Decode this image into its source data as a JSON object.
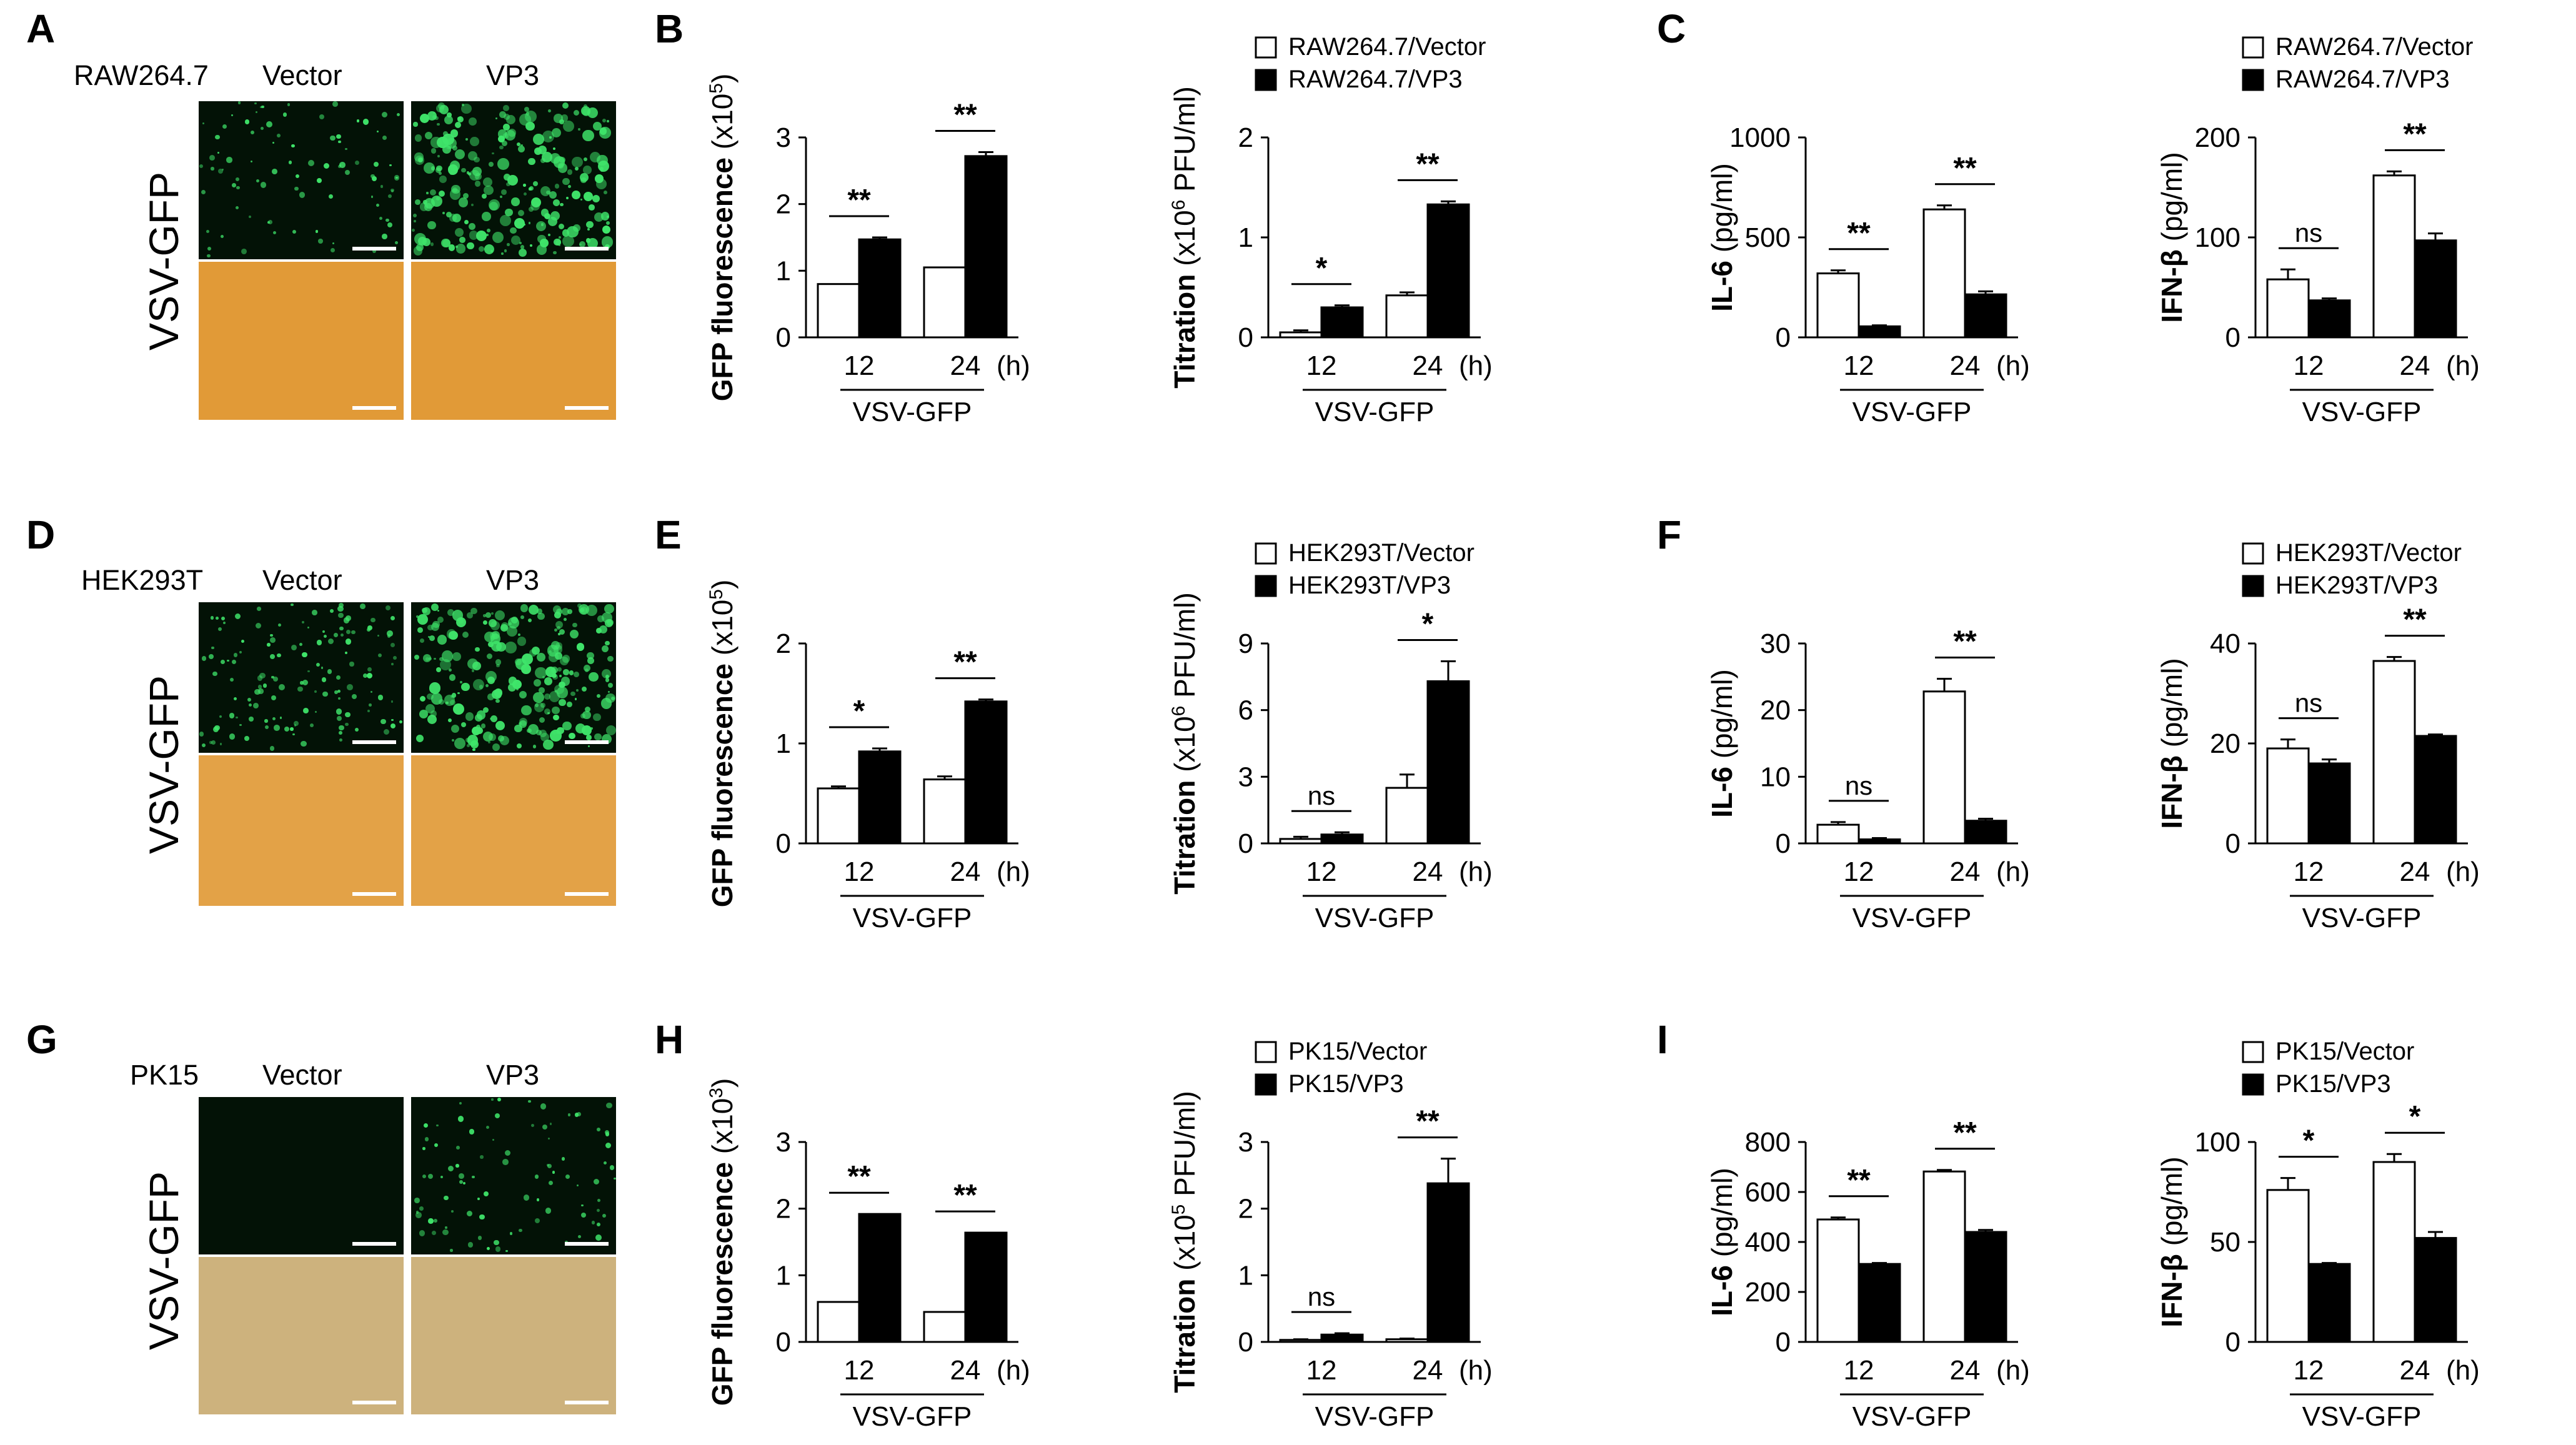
{
  "panel_letters": [
    "A",
    "B",
    "C",
    "D",
    "E",
    "F",
    "G",
    "H",
    "I"
  ],
  "micrographs": [
    {
      "cell_line": "RAW264.7",
      "col_left": "Vector",
      "col_right": "VP3",
      "virus_label": "VSV-GFP",
      "brightfield_color": "#e19a37",
      "fluor_density_left": 0.35,
      "fluor_density_right": 1.0
    },
    {
      "cell_line": "HEK293T",
      "col_left": "Vector",
      "col_right": "VP3",
      "virus_label": "VSV-GFP",
      "brightfield_color": "#e3a247",
      "fluor_density_left": 0.55,
      "fluor_density_right": 1.0
    },
    {
      "cell_line": "PK15",
      "col_left": "Vector",
      "col_right": "VP3",
      "virus_label": "VSV-GFP",
      "brightfield_color": "#cdb27d",
      "fluor_density_left": 0.0,
      "fluor_density_right": 0.35
    }
  ],
  "chart_data": [
    {
      "id": "B1",
      "type": "bar",
      "ylabel_main": "GFP fluorescence",
      "ylabel_unit_pre": " (x10",
      "ylabel_sup": "5",
      "ylabel_unit_post": ")",
      "ylabel_bold": true,
      "ylim": [
        0,
        3
      ],
      "yticks": [
        "0",
        "1",
        "2",
        "3"
      ],
      "categories": [
        "12",
        "24"
      ],
      "x_unit": "(h)",
      "xlabel": "VSV-GFP",
      "series": [
        {
          "name": "RAW264.7/Vector",
          "values": [
            0.8,
            1.05
          ],
          "err": [
            0,
            0
          ]
        },
        {
          "name": "RAW264.7/VP3",
          "values": [
            1.47,
            2.72
          ],
          "err": [
            0.03,
            0.06
          ]
        }
      ],
      "sig": [
        "**",
        "**"
      ],
      "legend": []
    },
    {
      "id": "B2",
      "type": "bar",
      "ylabel_main": "Titration",
      "ylabel_unit_pre": " (x10",
      "ylabel_sup": "6",
      "ylabel_unit_post": " PFU/ml)",
      "ylabel_bold": false,
      "ylim": [
        0,
        2
      ],
      "yticks": [
        "0",
        "1",
        "2"
      ],
      "categories": [
        "12",
        "24"
      ],
      "x_unit": "(h)",
      "xlabel": "VSV-GFP",
      "series": [
        {
          "name": "RAW264.7/Vector",
          "values": [
            0.05,
            0.42
          ],
          "err": [
            0.02,
            0.03
          ]
        },
        {
          "name": "RAW264.7/VP3",
          "values": [
            0.3,
            1.33
          ],
          "err": [
            0.02,
            0.03
          ]
        }
      ],
      "sig": [
        "*",
        "**"
      ],
      "legend": [
        "RAW264.7/Vector",
        "RAW264.7/VP3"
      ]
    },
    {
      "id": "C1",
      "type": "bar",
      "ylabel_main": "IL-6",
      "ylabel_unit_pre": " (pg/ml)",
      "ylabel_sup": "",
      "ylabel_unit_post": "",
      "ylabel_bold": false,
      "ylim": [
        0,
        1000
      ],
      "yticks": [
        "0",
        "500",
        "1000"
      ],
      "categories": [
        "12",
        "24"
      ],
      "x_unit": "(h)",
      "xlabel": "VSV-GFP",
      "series": [
        {
          "name": "RAW264.7/Vector",
          "values": [
            320,
            640
          ],
          "err": [
            15,
            20
          ]
        },
        {
          "name": "RAW264.7/VP3",
          "values": [
            55,
            215
          ],
          "err": [
            5,
            15
          ]
        }
      ],
      "sig": [
        "**",
        "**"
      ],
      "legend": []
    },
    {
      "id": "C2",
      "type": "bar",
      "ylabel_main": "IFN-β",
      "ylabel_unit_pre": " (pg/ml)",
      "ylabel_sup": "",
      "ylabel_unit_post": "",
      "ylabel_bold": false,
      "ylim": [
        0,
        200
      ],
      "yticks": [
        "0",
        "100",
        "200"
      ],
      "categories": [
        "12",
        "24"
      ],
      "x_unit": "(h)",
      "xlabel": "VSV-GFP",
      "series": [
        {
          "name": "RAW264.7/Vector",
          "values": [
            58,
            162
          ],
          "err": [
            10,
            4
          ]
        },
        {
          "name": "RAW264.7/VP3",
          "values": [
            37,
            97
          ],
          "err": [
            2,
            7
          ]
        }
      ],
      "sig": [
        "ns",
        "**"
      ],
      "legend": [
        "RAW264.7/Vector",
        "RAW264.7/VP3"
      ]
    },
    {
      "id": "E1",
      "type": "bar",
      "ylabel_main": "GFP fluorescence",
      "ylabel_unit_pre": " (x10",
      "ylabel_sup": "5",
      "ylabel_unit_post": ")",
      "ylabel_bold": true,
      "ylim": [
        0,
        2
      ],
      "yticks": [
        "0",
        "1",
        "2"
      ],
      "categories": [
        "12",
        "24"
      ],
      "x_unit": "(h)",
      "xlabel": "VSV-GFP",
      "series": [
        {
          "name": "HEK293T/Vector",
          "values": [
            0.55,
            0.64
          ],
          "err": [
            0.02,
            0.03
          ]
        },
        {
          "name": "HEK293T/VP3",
          "values": [
            0.92,
            1.42
          ],
          "err": [
            0.03,
            0.02
          ]
        }
      ],
      "sig": [
        "*",
        "**"
      ],
      "legend": []
    },
    {
      "id": "E2",
      "type": "bar",
      "ylabel_main": "Titration",
      "ylabel_unit_pre": " (x10",
      "ylabel_sup": "6",
      "ylabel_unit_post": " PFU/ml)",
      "ylabel_bold": false,
      "ylim": [
        0,
        9
      ],
      "yticks": [
        "0",
        "3",
        "6",
        "9"
      ],
      "categories": [
        "12",
        "24"
      ],
      "x_unit": "(h)",
      "xlabel": "VSV-GFP",
      "series": [
        {
          "name": "HEK293T/Vector",
          "values": [
            0.2,
            2.5
          ],
          "err": [
            0.1,
            0.6
          ]
        },
        {
          "name": "HEK293T/VP3",
          "values": [
            0.4,
            7.3
          ],
          "err": [
            0.1,
            0.9
          ]
        }
      ],
      "sig": [
        "ns",
        "*"
      ],
      "legend": [
        "HEK293T/Vector",
        "HEK293T/VP3"
      ]
    },
    {
      "id": "F1",
      "type": "bar",
      "ylabel_main": "IL-6",
      "ylabel_unit_pre": " (pg/ml)",
      "ylabel_sup": "",
      "ylabel_unit_post": "",
      "ylabel_bold": false,
      "ylim": [
        0,
        30
      ],
      "yticks": [
        "0",
        "10",
        "20",
        "30"
      ],
      "categories": [
        "12",
        "24"
      ],
      "x_unit": "(h)",
      "xlabel": "VSV-GFP",
      "series": [
        {
          "name": "HEK293T/Vector",
          "values": [
            2.8,
            22.8
          ],
          "err": [
            0.4,
            1.9
          ]
        },
        {
          "name": "HEK293T/VP3",
          "values": [
            0.6,
            3.4
          ],
          "err": [
            0.2,
            0.3
          ]
        }
      ],
      "sig": [
        "ns",
        "**"
      ],
      "legend": []
    },
    {
      "id": "F2",
      "type": "bar",
      "ylabel_main": "IFN-β",
      "ylabel_unit_pre": " (pg/ml)",
      "ylabel_sup": "",
      "ylabel_unit_post": "",
      "ylabel_bold": false,
      "ylim": [
        0,
        40
      ],
      "yticks": [
        "0",
        "20",
        "40"
      ],
      "categories": [
        "12",
        "24"
      ],
      "x_unit": "(h)",
      "xlabel": "VSV-GFP",
      "series": [
        {
          "name": "HEK293T/Vector",
          "values": [
            19,
            36.5
          ],
          "err": [
            1.8,
            0.8
          ]
        },
        {
          "name": "HEK293T/VP3",
          "values": [
            16,
            21.5
          ],
          "err": [
            0.8,
            0.3
          ]
        }
      ],
      "sig": [
        "ns",
        "**"
      ],
      "legend": [
        "HEK293T/Vector",
        "HEK293T/VP3"
      ]
    },
    {
      "id": "H1",
      "type": "bar",
      "ylabel_main": "GFP fluorescence",
      "ylabel_unit_pre": " (x10",
      "ylabel_sup": "3",
      "ylabel_unit_post": ")",
      "ylabel_bold": true,
      "ylim": [
        0,
        3
      ],
      "yticks": [
        "0",
        "1",
        "2",
        "3"
      ],
      "categories": [
        "12",
        "24"
      ],
      "x_unit": "(h)",
      "xlabel": "VSV-GFP",
      "series": [
        {
          "name": "PK15/Vector",
          "values": [
            0.6,
            0.45
          ],
          "err": [
            0,
            0
          ]
        },
        {
          "name": "PK15/VP3",
          "values": [
            1.92,
            1.64
          ],
          "err": [
            0,
            0
          ]
        }
      ],
      "sig": [
        "**",
        "**"
      ],
      "legend": []
    },
    {
      "id": "H2",
      "type": "bar",
      "ylabel_main": "Titration",
      "ylabel_unit_pre": " (x10",
      "ylabel_sup": "5",
      "ylabel_unit_post": " PFU/ml)",
      "ylabel_bold": false,
      "ylim": [
        0,
        3
      ],
      "yticks": [
        "0",
        "1",
        "2",
        "3"
      ],
      "categories": [
        "12",
        "24"
      ],
      "x_unit": "(h)",
      "xlabel": "VSV-GFP",
      "series": [
        {
          "name": "PK15/Vector",
          "values": [
            0.03,
            0.04
          ],
          "err": [
            0.01,
            0.01
          ]
        },
        {
          "name": "PK15/VP3",
          "values": [
            0.11,
            2.38
          ],
          "err": [
            0.02,
            0.37
          ]
        }
      ],
      "sig": [
        "ns",
        "**"
      ],
      "legend": [
        "PK15/Vector",
        "PK15/VP3"
      ]
    },
    {
      "id": "I1",
      "type": "bar",
      "ylabel_main": "IL-6",
      "ylabel_unit_pre": " (pg/ml)",
      "ylabel_sup": "",
      "ylabel_unit_post": "",
      "ylabel_bold": false,
      "ylim": [
        0,
        800
      ],
      "yticks": [
        "0",
        "200",
        "400",
        "600",
        "800"
      ],
      "categories": [
        "12",
        "24"
      ],
      "x_unit": "(h)",
      "xlabel": "VSV-GFP",
      "series": [
        {
          "name": "PK15/Vector",
          "values": [
            490,
            682
          ],
          "err": [
            8,
            6
          ]
        },
        {
          "name": "PK15/VP3",
          "values": [
            312,
            440
          ],
          "err": [
            4,
            8
          ]
        }
      ],
      "sig": [
        "**",
        "**"
      ],
      "legend": []
    },
    {
      "id": "I2",
      "type": "bar",
      "ylabel_main": "IFN-β",
      "ylabel_unit_pre": " (pg/ml)",
      "ylabel_sup": "",
      "ylabel_unit_post": "",
      "ylabel_bold": false,
      "ylim": [
        0,
        100
      ],
      "yticks": [
        "0",
        "50",
        "100"
      ],
      "categories": [
        "12",
        "24"
      ],
      "x_unit": "(h)",
      "xlabel": "VSV-GFP",
      "series": [
        {
          "name": "PK15/Vector",
          "values": [
            76,
            90
          ],
          "err": [
            6,
            4
          ]
        },
        {
          "name": "PK15/VP3",
          "values": [
            39,
            52
          ],
          "err": [
            0.5,
            3
          ]
        }
      ],
      "sig": [
        "*",
        "*"
      ],
      "legend": [
        "PK15/Vector",
        "PK15/VP3"
      ]
    }
  ]
}
